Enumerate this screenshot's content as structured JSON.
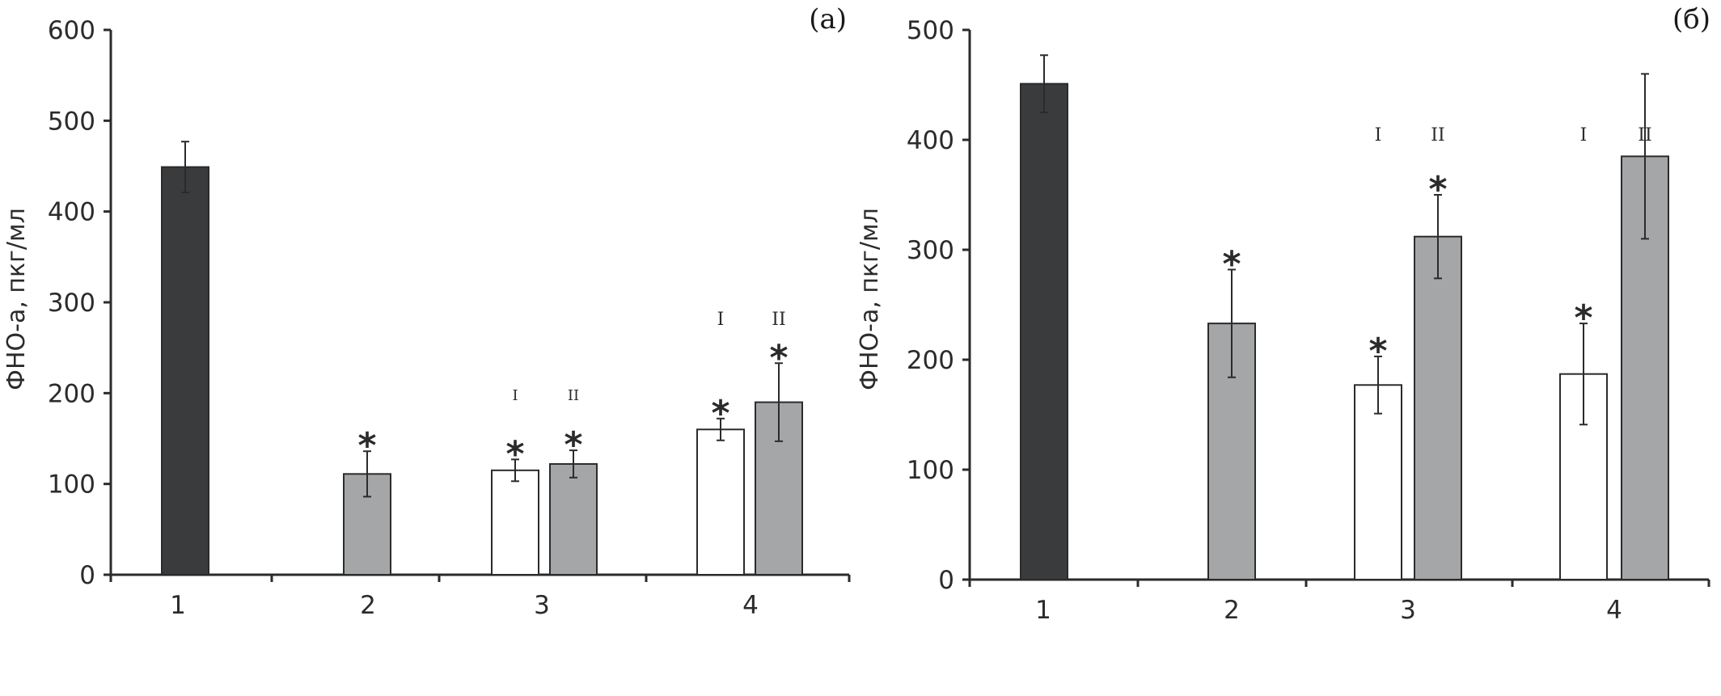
{
  "chart_data": [
    {
      "type": "bar",
      "panel_label": "(а)",
      "ylabel": "ФНО-а, пкг/мл",
      "ylim": [
        0,
        600
      ],
      "yticks": [
        "0",
        "100",
        "200",
        "300",
        "400",
        "500",
        "600"
      ],
      "categories": [
        "1",
        "2",
        "3",
        "4"
      ],
      "bars": [
        {
          "category": "1",
          "fill": "#3a3b3d",
          "value": 449,
          "error": 28,
          "star": ""
        },
        {
          "category": "2",
          "fill": "#a4a6a7",
          "value": 111,
          "error": 25,
          "star": "*"
        },
        {
          "category": "3",
          "fill": "#ffffff",
          "value": 115,
          "error": 12,
          "star": "*",
          "marker": "I"
        },
        {
          "category": "3",
          "fill": "#a4a6a7",
          "value": 122,
          "error": 15,
          "star": "*",
          "marker": "II"
        },
        {
          "category": "4",
          "fill": "#ffffff",
          "value": 160,
          "error": 12,
          "star": "*",
          "marker": "I"
        },
        {
          "category": "4",
          "fill": "#a4a6a7",
          "value": 190,
          "error": 43,
          "star": "*",
          "marker": "II"
        }
      ]
    },
    {
      "type": "bar",
      "panel_label": "(б)",
      "ylabel": "ФНО-а, пкг/мл",
      "ylim": [
        0,
        500
      ],
      "yticks": [
        "0",
        "100",
        "200",
        "300",
        "400",
        "500"
      ],
      "categories": [
        "1",
        "2",
        "3",
        "4"
      ],
      "bars": [
        {
          "category": "1",
          "fill": "#3a3b3d",
          "value": 451,
          "error": 26,
          "star": ""
        },
        {
          "category": "2",
          "fill": "#a4a6a7",
          "value": 233,
          "error": 49,
          "star": "*"
        },
        {
          "category": "3",
          "fill": "#ffffff",
          "value": 177,
          "error": 26,
          "star": "*",
          "marker": "I"
        },
        {
          "category": "3",
          "fill": "#a4a6a7",
          "value": 312,
          "error": 38,
          "star": "*",
          "marker": "II"
        },
        {
          "category": "4",
          "fill": "#ffffff",
          "value": 187,
          "error": 46,
          "star": "*",
          "marker": "I"
        },
        {
          "category": "4",
          "fill": "#a4a6a7",
          "value": 385,
          "error": 75,
          "star": "",
          "marker": "II"
        }
      ]
    }
  ]
}
